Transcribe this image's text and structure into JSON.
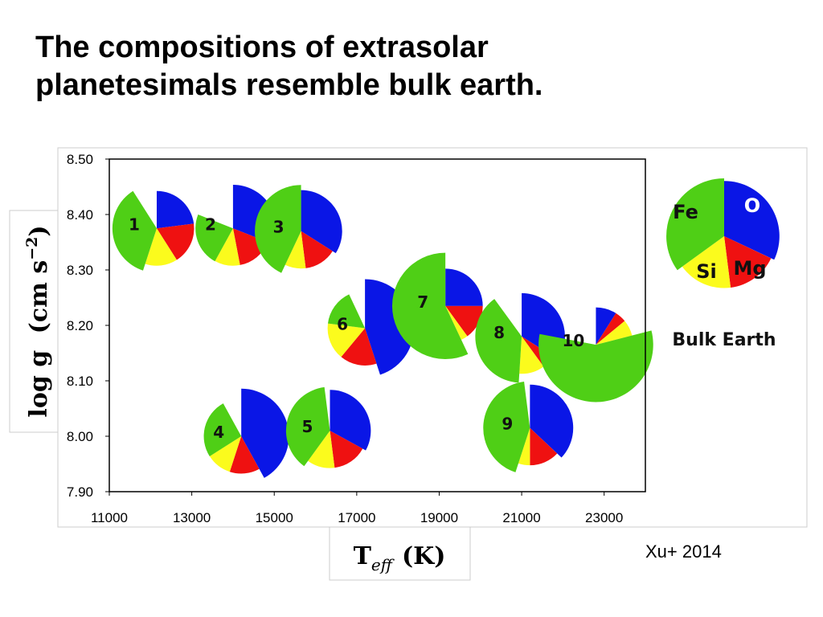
{
  "slide": {
    "title_lines": [
      "The compositions of extrasolar",
      "planetesimals resemble bulk earth."
    ],
    "credit": "Xu+ 2014"
  },
  "chart_data": {
    "type": "scatter",
    "marker": "pie",
    "title": "",
    "xlabel": "T_eff (K)",
    "ylabel": "log g (cm s^-2)",
    "xlim": [
      11000,
      24000
    ],
    "ylim": [
      7.9,
      8.5
    ],
    "x_ticks": [
      "11000",
      "13000",
      "15000",
      "17000",
      "19000",
      "21000",
      "23000"
    ],
    "y_ticks": [
      "7.90",
      "8.00",
      "8.10",
      "8.20",
      "8.30",
      "8.40",
      "8.50"
    ],
    "grid": false,
    "element_order": [
      "O",
      "Mg",
      "Si",
      "Fe"
    ],
    "colors": {
      "O": "#0a16e6",
      "Mg": "#ef1111",
      "Si": "#fbfb1d",
      "Fe": "#4fcf16"
    },
    "points": [
      {
        "label": "1",
        "x": 12150,
        "y": 8.375,
        "fractions": [
          0.23,
          0.18,
          0.14,
          0.36
        ]
      },
      {
        "label": "2",
        "x": 14000,
        "y": 8.375,
        "fractions": [
          0.31,
          0.16,
          0.11,
          0.23
        ]
      },
      {
        "label": "3",
        "x": 15650,
        "y": 8.37,
        "fractions": [
          0.34,
          0.14,
          0.09,
          0.43
        ]
      },
      {
        "label": "4",
        "x": 14200,
        "y": 8.0,
        "fractions": [
          0.42,
          0.13,
          0.11,
          0.26
        ]
      },
      {
        "label": "5",
        "x": 16350,
        "y": 8.01,
        "fractions": [
          0.33,
          0.15,
          0.12,
          0.38
        ]
      },
      {
        "label": "6",
        "x": 17200,
        "y": 8.195,
        "fractions": [
          0.45,
          0.16,
          0.16,
          0.16
        ]
      },
      {
        "label": "7",
        "x": 19150,
        "y": 8.235,
        "fractions": [
          0.25,
          0.15,
          0.03,
          0.57
        ]
      },
      {
        "label": "8",
        "x": 21000,
        "y": 8.18,
        "fractions": [
          0.34,
          0.06,
          0.11,
          0.39
        ]
      },
      {
        "label": "9",
        "x": 21200,
        "y": 8.015,
        "fractions": [
          0.37,
          0.13,
          0.05,
          0.43
        ]
      },
      {
        "label": "10",
        "x": 22800,
        "y": 8.165,
        "fractions": [
          0.09,
          0.05,
          0.07,
          0.57
        ]
      }
    ],
    "reference": {
      "label": "Bulk Earth",
      "fractions": [
        0.32,
        0.16,
        0.17,
        0.35
      ],
      "slice_labels": [
        "O",
        "Mg",
        "Si",
        "Fe"
      ]
    }
  }
}
